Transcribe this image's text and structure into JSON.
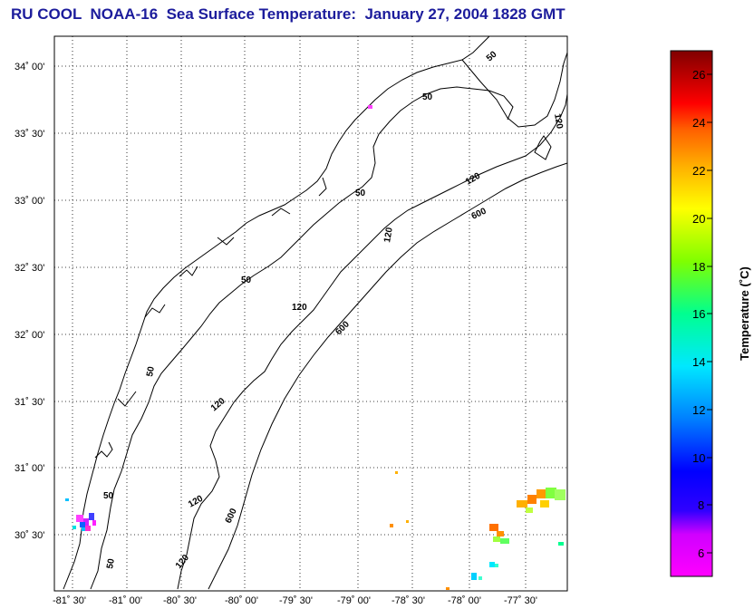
{
  "title": "RU COOL  NOAA-16  Sea Surface Temperature:  January 27, 2004 1828 GMT",
  "map": {
    "lat_labels": [
      "34˚ 00'",
      "33˚ 30'",
      "33˚ 00'",
      "32˚ 30'",
      "32˚ 00'",
      "31˚ 30'",
      "31˚ 00'",
      "30˚ 30'"
    ],
    "lon_labels": [
      "-81˚ 30'",
      "-81˚ 00'",
      "-80˚ 30'",
      "-80˚ 00'",
      "-79˚ 30'",
      "-79˚ 00'",
      "-78˚ 30'",
      "-78˚ 00'",
      "-77˚ 30'"
    ],
    "contour_labels": [
      "50",
      "50",
      "50",
      "50",
      "50",
      "50",
      "50",
      "120",
      "120",
      "120",
      "120",
      "120",
      "120",
      "120",
      "600",
      "600",
      "600"
    ],
    "grid": true
  },
  "colorbar": {
    "title": "Temperature (˚C)",
    "min": 5,
    "max": 27,
    "ticks": [
      "26",
      "24",
      "22",
      "20",
      "18",
      "16",
      "14",
      "12",
      "10",
      "8",
      "6"
    ]
  }
}
